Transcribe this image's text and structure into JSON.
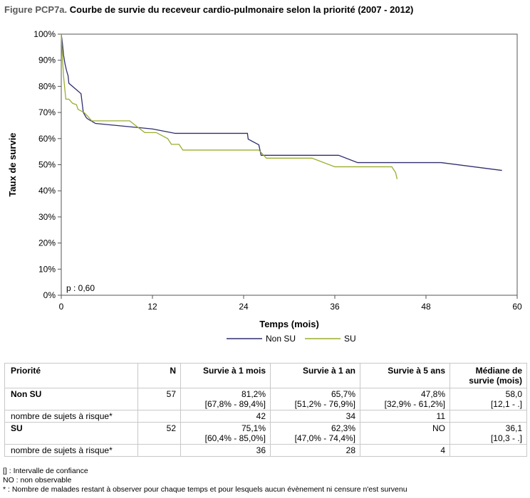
{
  "title": {
    "prefix": "Figure PCP7a.",
    "main": "Courbe de survie du receveur cardio-pulmonaire selon la priorité (2007 - 2012)"
  },
  "chart_data": {
    "type": "line",
    "step": true,
    "xlabel": "Temps (mois)",
    "ylabel": "Taux de survie",
    "xlim": [
      0,
      60
    ],
    "ylim": [
      0,
      100
    ],
    "xticks": [
      0,
      12,
      24,
      36,
      48,
      60
    ],
    "yticks": [
      0,
      10,
      20,
      30,
      40,
      50,
      60,
      70,
      80,
      90,
      100
    ],
    "yunit": "%",
    "grid": false,
    "legend": "bottom",
    "annotation": "p : 0,60",
    "series": [
      {
        "name": "Non SU",
        "color": "#2e2e6e",
        "points": [
          [
            0,
            100
          ],
          [
            0.15,
            96.5
          ],
          [
            0.3,
            92
          ],
          [
            0.5,
            88.5
          ],
          [
            0.7,
            86
          ],
          [
            0.9,
            84
          ],
          [
            1.0,
            81.2
          ],
          [
            2.6,
            77.2
          ],
          [
            2.9,
            70
          ],
          [
            3.3,
            68
          ],
          [
            3.5,
            67.5
          ],
          [
            4.5,
            65.8
          ],
          [
            12.0,
            63.7
          ],
          [
            15.0,
            62.0
          ],
          [
            24.5,
            62.0
          ],
          [
            24.6,
            59.8
          ],
          [
            26.0,
            57.6
          ],
          [
            26.3,
            53.6
          ],
          [
            36.5,
            53.6
          ],
          [
            39.0,
            50.8
          ],
          [
            50.0,
            50.8
          ],
          [
            58.0,
            47.8
          ]
        ]
      },
      {
        "name": "SU",
        "color": "#9aad2e",
        "points": [
          [
            0,
            100
          ],
          [
            0.15,
            91
          ],
          [
            0.3,
            84
          ],
          [
            0.5,
            78
          ],
          [
            0.6,
            75.1
          ],
          [
            1.0,
            75.1
          ],
          [
            1.5,
            73.5
          ],
          [
            2.0,
            73.0
          ],
          [
            2.2,
            71.2
          ],
          [
            3.0,
            70.0
          ],
          [
            3.5,
            68.5
          ],
          [
            4.0,
            66.8
          ],
          [
            9.0,
            66.8
          ],
          [
            10.0,
            64.5
          ],
          [
            11.0,
            62.3
          ],
          [
            12.5,
            62.3
          ],
          [
            14.0,
            60.0
          ],
          [
            14.5,
            57.8
          ],
          [
            15.5,
            57.8
          ],
          [
            16.0,
            55.6
          ],
          [
            20.0,
            55.6
          ],
          [
            26.0,
            55.6
          ],
          [
            27.0,
            52.5
          ],
          [
            33.0,
            52.5
          ],
          [
            36.0,
            49.2
          ],
          [
            43.5,
            49.2
          ],
          [
            44.0,
            47.0
          ],
          [
            44.2,
            44.5
          ]
        ]
      }
    ]
  },
  "table": {
    "headers": [
      "Priorité",
      "N",
      "Survie à 1 mois",
      "Survie à 1 an",
      "Survie à 5 ans",
      "Médiane de survie (mois)"
    ],
    "groups": [
      {
        "label": "Non SU",
        "n": "57",
        "cells": [
          {
            "value": "81,2%",
            "ci": "[67,8% - 89,4%]"
          },
          {
            "value": "65,7%",
            "ci": "[51,2% - 76,9%]"
          },
          {
            "value": "47,8%",
            "ci": "[32,9% - 61,2%]"
          },
          {
            "value": "58,0",
            "ci": "[12,1 - .]"
          }
        ],
        "risk_label": "nombre de sujets à risque*",
        "risk": [
          "42",
          "34",
          "11",
          ""
        ]
      },
      {
        "label": "SU",
        "n": "52",
        "cells": [
          {
            "value": "75,1%",
            "ci": "[60,4% - 85,0%]"
          },
          {
            "value": "62,3%",
            "ci": "[47,0% - 74,4%]"
          },
          {
            "value": "NO",
            "ci": ""
          },
          {
            "value": "36,1",
            "ci": "[10,3 - .]"
          }
        ],
        "risk_label": "nombre de sujets à risque*",
        "risk": [
          "36",
          "28",
          "4",
          ""
        ]
      }
    ]
  },
  "notes": [
    "[] : Intervalle de confiance",
    "NO : non observable",
    "* : Nombre de malades restant à observer pour chaque temps et pour lesquels aucun évènement ni censure n'est survenu"
  ]
}
